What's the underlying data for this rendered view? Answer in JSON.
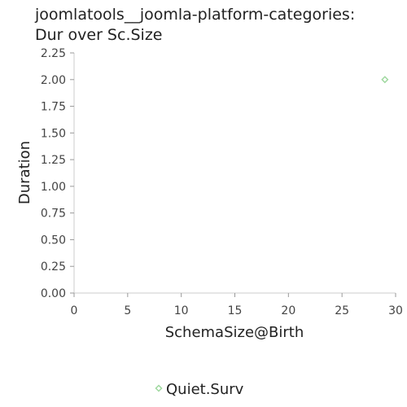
{
  "chart_data": {
    "type": "scatter",
    "title_lines": [
      "joomlatools__joomla-platform-categories:",
      "Dur over Sc.Size"
    ],
    "xlabel": "SchemaSize@Birth",
    "ylabel": "Duration",
    "xlim": [
      0,
      30
    ],
    "ylim": [
      0,
      2.25
    ],
    "x_ticks": [
      "0",
      "5",
      "10",
      "15",
      "20",
      "25",
      "30"
    ],
    "x_tick_values": [
      0,
      5,
      10,
      15,
      20,
      25,
      30
    ],
    "y_ticks": [
      "0.00",
      "0.25",
      "0.50",
      "0.75",
      "1.00",
      "1.25",
      "1.50",
      "1.75",
      "2.00",
      "2.25"
    ],
    "y_tick_values": [
      0,
      0.25,
      0.5,
      0.75,
      1.0,
      1.25,
      1.5,
      1.75,
      2.0,
      2.25
    ],
    "grid": false,
    "legend_position": "bottom-center",
    "series": [
      {
        "name": "Quiet.Surv",
        "color": "#9fd89f",
        "marker": "diamond",
        "points": [
          {
            "x": 29,
            "y": 2.0
          }
        ]
      }
    ]
  }
}
